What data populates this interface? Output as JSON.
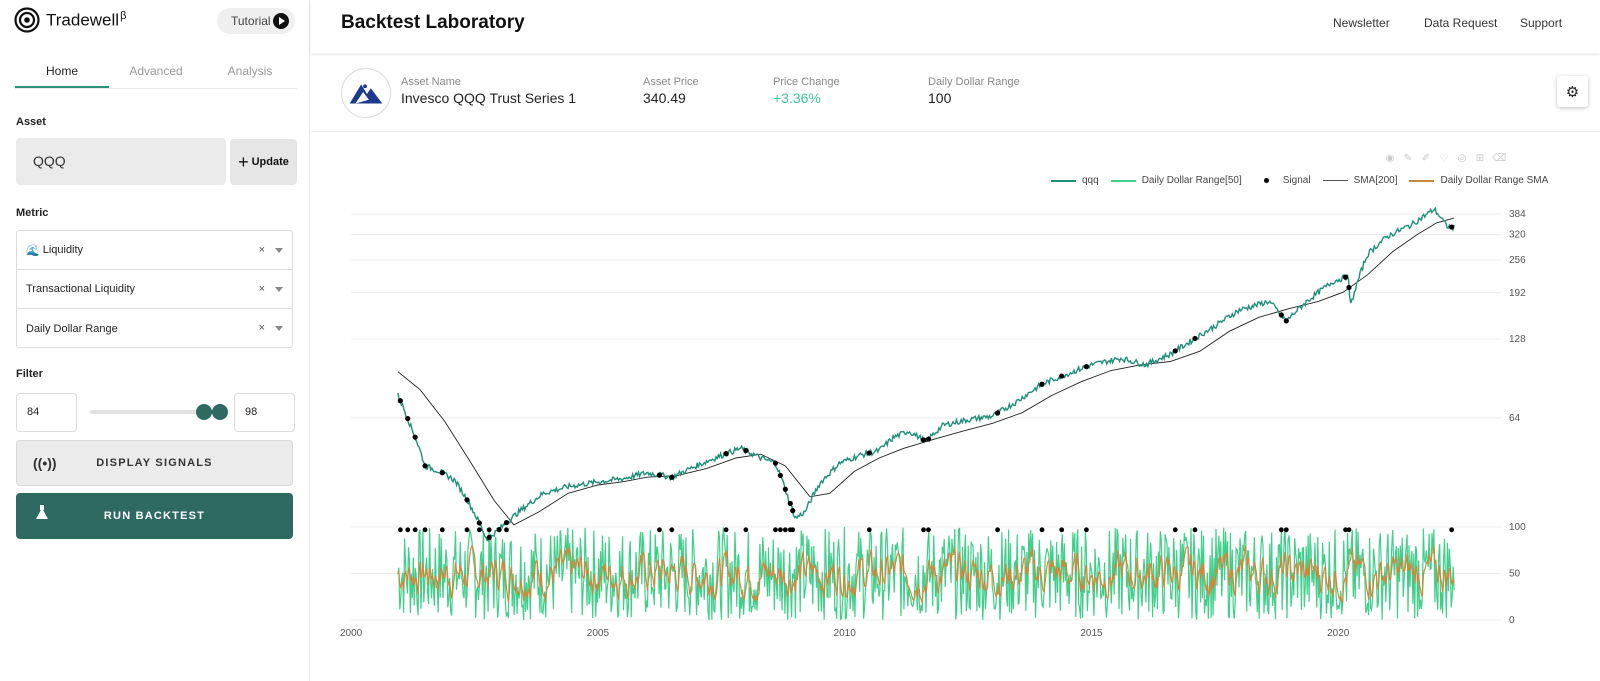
{
  "app": {
    "name": "Tradewell",
    "superscript": "β",
    "tutorial_label": "Tutorial"
  },
  "sidebar": {
    "tabs": [
      {
        "label": "Home",
        "active": true
      },
      {
        "label": "Advanced",
        "active": false
      },
      {
        "label": "Analysis",
        "active": false
      }
    ],
    "asset_label": "Asset",
    "asset_value": "QQQ",
    "update_label": "Update",
    "metric_label": "Metric",
    "metrics": [
      {
        "label": "Liquidity",
        "icon": "wave-icon"
      },
      {
        "label": "Transactional Liquidity"
      },
      {
        "label": "Daily Dollar Range"
      }
    ],
    "clear_glyph": "×",
    "filter_label": "Filter",
    "filter_min": "84",
    "filter_max": "98",
    "display_signals_label": "DISPLAY SIGNALS",
    "run_backtest_label": "RUN BACKTEST",
    "colors": {
      "accent": "#2e6a5f",
      "tab_underline": "#2e8f7a"
    }
  },
  "header": {
    "title": "Backtest Laboratory",
    "nav": [
      "Newsletter",
      "Data Request",
      "Support"
    ]
  },
  "asset": {
    "name_label": "Asset Name",
    "name": "Invesco QQQ Trust Series 1",
    "price_label": "Asset Price",
    "price": "340.49",
    "change_label": "Price Change",
    "change": "+3.36%",
    "range_label": "Daily Dollar Range",
    "range": "100",
    "positive_color": "#3cc79a"
  },
  "chart_data": {
    "type": "line",
    "legend": [
      {
        "name": "qqq",
        "color": "#1f8f78",
        "style": "line"
      },
      {
        "name": "Daily Dollar Range[50]",
        "color": "#3fcf8a",
        "style": "line"
      },
      {
        "name": "Signal",
        "color": "#000000",
        "style": "dot"
      },
      {
        "name": "SMA[200]",
        "color": "#444444",
        "style": "line"
      },
      {
        "name": "Daily Dollar Range SMA",
        "color": "#c98a3c",
        "style": "line"
      }
    ],
    "legend_position": "top-right",
    "x_ticks": [
      "2000",
      "2005",
      "2010",
      "2015",
      "2020"
    ],
    "xlim": [
      2000,
      2023.3
    ],
    "price_panel": {
      "scale": "log",
      "y_ticks": [
        64,
        128,
        192,
        256,
        320,
        384
      ],
      "ylim": [
        28,
        430
      ],
      "price_points": [
        [
          2000.95,
          78
        ],
        [
          2001.2,
          60
        ],
        [
          2001.5,
          42
        ],
        [
          2001.8,
          40
        ],
        [
          2002.1,
          37
        ],
        [
          2002.4,
          30
        ],
        [
          2002.75,
          22
        ],
        [
          2003.0,
          24
        ],
        [
          2003.4,
          28
        ],
        [
          2003.9,
          33
        ],
        [
          2004.4,
          35
        ],
        [
          2005.0,
          36.5
        ],
        [
          2005.5,
          37.5
        ],
        [
          2006.0,
          39.5
        ],
        [
          2006.5,
          38
        ],
        [
          2007.0,
          42
        ],
        [
          2007.5,
          46
        ],
        [
          2007.9,
          49
        ],
        [
          2008.3,
          45
        ],
        [
          2008.6,
          43
        ],
        [
          2008.85,
          32
        ],
        [
          2009.0,
          26.5
        ],
        [
          2009.2,
          28
        ],
        [
          2009.5,
          36
        ],
        [
          2009.9,
          43
        ],
        [
          2010.3,
          46
        ],
        [
          2010.7,
          48
        ],
        [
          2011.0,
          54
        ],
        [
          2011.3,
          57
        ],
        [
          2011.65,
          52
        ],
        [
          2012.0,
          60
        ],
        [
          2012.5,
          63
        ],
        [
          2013.0,
          65
        ],
        [
          2013.5,
          74
        ],
        [
          2014.0,
          86
        ],
        [
          2014.5,
          94
        ],
        [
          2015.0,
          102
        ],
        [
          2015.6,
          108
        ],
        [
          2016.1,
          102
        ],
        [
          2016.6,
          112
        ],
        [
          2017.0,
          125
        ],
        [
          2017.5,
          143
        ],
        [
          2018.0,
          165
        ],
        [
          2018.6,
          178
        ],
        [
          2018.95,
          150
        ],
        [
          2019.4,
          180
        ],
        [
          2019.9,
          212
        ],
        [
          2020.2,
          222
        ],
        [
          2020.25,
          170
        ],
        [
          2020.6,
          270
        ],
        [
          2021.0,
          315
        ],
        [
          2021.5,
          350
        ],
        [
          2021.95,
          400
        ],
        [
          2022.2,
          345
        ],
        [
          2022.35,
          340.49
        ]
      ],
      "sma_points": [
        [
          2000.95,
          96
        ],
        [
          2001.4,
          82
        ],
        [
          2001.9,
          62
        ],
        [
          2002.4,
          44
        ],
        [
          2002.9,
          31
        ],
        [
          2003.3,
          25
        ],
        [
          2003.8,
          28
        ],
        [
          2004.4,
          33
        ],
        [
          2005.0,
          35.5
        ],
        [
          2005.5,
          36.5
        ],
        [
          2006.0,
          38
        ],
        [
          2006.6,
          38.5
        ],
        [
          2007.2,
          41
        ],
        [
          2007.8,
          45
        ],
        [
          2008.3,
          46.5
        ],
        [
          2008.8,
          42
        ],
        [
          2009.3,
          32
        ],
        [
          2009.7,
          33
        ],
        [
          2010.2,
          40
        ],
        [
          2010.7,
          45
        ],
        [
          2011.2,
          49
        ],
        [
          2011.8,
          53
        ],
        [
          2012.4,
          57
        ],
        [
          2013.0,
          61
        ],
        [
          2013.6,
          67
        ],
        [
          2014.2,
          78
        ],
        [
          2014.8,
          88
        ],
        [
          2015.4,
          97
        ],
        [
          2016.0,
          102
        ],
        [
          2016.6,
          105
        ],
        [
          2017.2,
          115
        ],
        [
          2017.8,
          137
        ],
        [
          2018.4,
          155
        ],
        [
          2019.0,
          167
        ],
        [
          2019.6,
          178
        ],
        [
          2020.1,
          193
        ],
        [
          2020.6,
          225
        ],
        [
          2021.1,
          275
        ],
        [
          2021.6,
          320
        ],
        [
          2022.0,
          355
        ],
        [
          2022.35,
          370
        ]
      ],
      "signal_dates": [
        2001.0,
        2001.15,
        2001.3,
        2001.5,
        2001.85,
        2002.35,
        2002.6,
        2002.8,
        2003.0,
        2003.15,
        2006.25,
        2006.5,
        2007.6,
        2008.0,
        2008.6,
        2008.7,
        2008.8,
        2008.9,
        2008.95,
        2010.5,
        2011.6,
        2011.7,
        2013.1,
        2014.0,
        2014.4,
        2014.9,
        2016.7,
        2017.1,
        2018.85,
        2018.95,
        2020.15,
        2020.22,
        2022.3
      ]
    },
    "range_panel": {
      "y_ticks": [
        0,
        50,
        100
      ],
      "ylim": [
        0,
        100
      ]
    }
  }
}
